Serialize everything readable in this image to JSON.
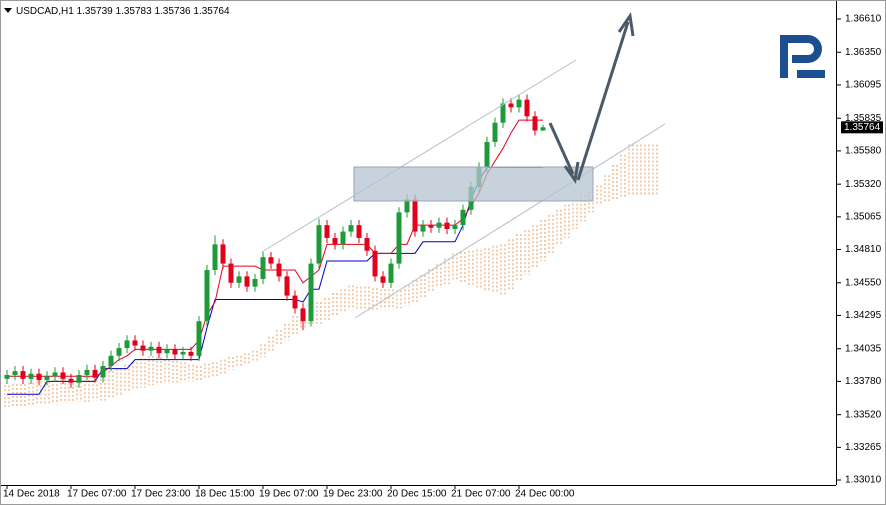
{
  "chart_data": {
    "type": "candlestick",
    "symbol": "USDCAD,H1",
    "categories": [
      "14 Dec 2018",
      null,
      null,
      null,
      null,
      null,
      null,
      null,
      "17 Dec 07:00",
      null,
      null,
      null,
      null,
      null,
      null,
      null,
      "17 Dec 23:00",
      null,
      null,
      null,
      null,
      null,
      null,
      null,
      "18 Dec 15:00",
      null,
      null,
      null,
      null,
      null,
      null,
      null,
      "19 Dec 07:00",
      null,
      null,
      null,
      null,
      null,
      null,
      null,
      "19 Dec 23:00",
      null,
      null,
      null,
      null,
      null,
      null,
      null,
      "20 Dec 15:00",
      null,
      null,
      null,
      null,
      null,
      null,
      null,
      "21 Dec 07:00",
      null,
      null,
      null,
      null,
      null,
      null,
      null,
      "24 Dec 00:00",
      null,
      null,
      null,
      null,
      null,
      null,
      null,
      null,
      null,
      null,
      null,
      null,
      null,
      null,
      null,
      null,
      null
    ],
    "open": [
      1.338,
      1.3383,
      1.3386,
      1.338,
      1.3384,
      1.3379,
      1.3382,
      1.3385,
      1.338,
      1.3377,
      1.3383,
      1.3387,
      1.3381,
      1.339,
      1.3398,
      1.3404,
      1.341,
      1.3406,
      1.3402,
      1.3405,
      1.34,
      1.3403,
      1.3399,
      1.3401,
      1.3398,
      1.3425,
      1.3465,
      1.3485,
      1.347,
      1.3455,
      1.346,
      1.3452,
      1.3458,
      1.3475,
      1.347,
      1.346,
      1.3445,
      1.3435,
      1.3425,
      1.347,
      1.35,
      1.349,
      1.3485,
      1.3495,
      1.35,
      1.349,
      1.348,
      1.346,
      1.3455,
      1.347,
      1.351,
      1.352,
      1.3495,
      1.35,
      1.3498,
      1.3502,
      1.3497,
      1.35,
      1.3512,
      1.353,
      1.3545,
      1.3565,
      1.358,
      1.3595,
      1.3592,
      1.3598,
      1.3585,
      1.35739,
      null,
      null,
      null,
      null,
      null,
      null,
      null,
      null,
      null,
      null,
      null,
      null,
      null,
      null
    ],
    "high": [
      1.3387,
      1.339,
      1.339,
      1.3388,
      1.3388,
      1.3386,
      1.3389,
      1.3389,
      1.3384,
      1.3387,
      1.3391,
      1.3391,
      1.3394,
      1.3402,
      1.3408,
      1.3414,
      1.3414,
      1.341,
      1.3409,
      1.3409,
      1.3407,
      1.3407,
      1.3405,
      1.3405,
      1.3429,
      1.3469,
      1.3492,
      1.3489,
      1.3474,
      1.3464,
      1.3464,
      1.3462,
      1.3479,
      1.3479,
      1.3474,
      1.3464,
      1.3449,
      1.3439,
      1.3474,
      1.3505,
      1.3504,
      1.3494,
      1.3499,
      1.3504,
      1.3504,
      1.3494,
      1.3484,
      1.3464,
      1.3474,
      1.3514,
      1.3524,
      1.3524,
      1.3504,
      1.3504,
      1.3506,
      1.3506,
      1.3504,
      1.3516,
      1.3534,
      1.3549,
      1.3569,
      1.3584,
      1.3599,
      1.3599,
      1.3602,
      1.3602,
      1.3589,
      1.35783,
      null,
      null,
      null,
      null,
      null,
      null,
      null,
      null,
      null,
      null,
      null,
      null,
      null,
      null
    ],
    "low": [
      1.3376,
      1.3379,
      1.3376,
      1.3376,
      1.3375,
      1.3375,
      1.3378,
      1.3376,
      1.3373,
      1.3373,
      1.3379,
      1.3377,
      1.3377,
      1.3386,
      1.3394,
      1.34,
      1.3402,
      1.3398,
      1.3398,
      1.3396,
      1.3396,
      1.3395,
      1.3395,
      1.3394,
      1.3394,
      1.3421,
      1.3461,
      1.3466,
      1.3451,
      1.3451,
      1.3448,
      1.3448,
      1.3454,
      1.3466,
      1.3456,
      1.3441,
      1.3431,
      1.3418,
      1.3421,
      1.3466,
      1.3486,
      1.3481,
      1.3481,
      1.3491,
      1.3486,
      1.3476,
      1.3456,
      1.3451,
      1.3451,
      1.3466,
      1.3506,
      1.3491,
      1.3491,
      1.3494,
      1.3494,
      1.3493,
      1.3493,
      1.3496,
      1.3508,
      1.3526,
      1.3541,
      1.3561,
      1.3576,
      1.3588,
      1.3588,
      1.3581,
      1.357,
      1.35736,
      null,
      null,
      null,
      null,
      null,
      null,
      null,
      null,
      null,
      null,
      null,
      null,
      null,
      null
    ],
    "close": [
      1.3383,
      1.3386,
      1.338,
      1.3384,
      1.3379,
      1.3382,
      1.3385,
      1.338,
      1.3377,
      1.3383,
      1.3387,
      1.3381,
      1.339,
      1.3398,
      1.3404,
      1.341,
      1.3406,
      1.3402,
      1.3405,
      1.34,
      1.3403,
      1.3399,
      1.3401,
      1.3398,
      1.3425,
      1.3465,
      1.3485,
      1.347,
      1.3455,
      1.346,
      1.3452,
      1.3458,
      1.3475,
      1.347,
      1.346,
      1.3445,
      1.3435,
      1.3425,
      1.347,
      1.35,
      1.349,
      1.3485,
      1.3495,
      1.35,
      1.349,
      1.348,
      1.346,
      1.3455,
      1.347,
      1.351,
      1.352,
      1.3495,
      1.35,
      1.3498,
      1.3502,
      1.3497,
      1.35,
      1.3512,
      1.353,
      1.3545,
      1.3565,
      1.358,
      1.3595,
      1.3592,
      1.3598,
      1.3585,
      1.35739,
      1.35764,
      null,
      null,
      null,
      null,
      null,
      null,
      null,
      null,
      null,
      null,
      null,
      null,
      null,
      null
    ],
    "kijun": [
      1.3368,
      1.3368,
      1.3368,
      1.3368,
      1.3368,
      1.3378,
      1.3378,
      1.3378,
      1.3378,
      1.3378,
      1.3378,
      1.3378,
      1.3388,
      1.3388,
      1.3388,
      1.3388,
      1.3395,
      1.3395,
      1.3395,
      1.3395,
      1.3395,
      1.3395,
      1.3395,
      1.3395,
      1.3395,
      1.342,
      1.3442,
      1.3442,
      1.3442,
      1.3442,
      1.3442,
      1.3442,
      1.3442,
      1.3442,
      1.3442,
      1.3442,
      1.3442,
      1.344,
      1.345,
      1.345,
      1.3472,
      1.3472,
      1.3472,
      1.3472,
      1.3472,
      1.3472,
      1.3478,
      1.3478,
      1.3478,
      1.3478,
      1.3478,
      1.3478,
      1.3487,
      1.3487,
      1.3487,
      1.3487,
      1.3487,
      1.35,
      1.352,
      1.3535,
      1.3545,
      1.3545,
      1.3545,
      1.3545,
      1.3545,
      1.3545,
      1.3545,
      1.3545,
      null,
      null,
      null,
      null,
      null,
      null,
      null,
      null,
      null,
      null,
      null,
      null,
      null,
      null
    ],
    "tenkan": [
      1.3382,
      1.3382,
      1.3382,
      1.3382,
      1.3382,
      1.3382,
      1.3382,
      1.3382,
      1.3382,
      1.3382,
      1.3382,
      1.3382,
      1.3385,
      1.339,
      1.3395,
      1.3398,
      1.3403,
      1.3403,
      1.3403,
      1.3403,
      1.3403,
      1.3403,
      1.3403,
      1.3403,
      1.341,
      1.343,
      1.344,
      1.3468,
      1.3468,
      1.3468,
      1.3468,
      1.3468,
      1.3465,
      1.3465,
      1.3465,
      1.3465,
      1.3465,
      1.3455,
      1.346,
      1.3465,
      1.3485,
      1.3485,
      1.3485,
      1.3485,
      1.3485,
      1.3485,
      1.3478,
      1.3478,
      1.3478,
      1.3485,
      1.3485,
      1.35,
      1.35,
      1.35,
      1.35,
      1.35,
      1.35,
      1.3505,
      1.3515,
      1.3525,
      1.354,
      1.355,
      1.356,
      1.3572,
      1.3582,
      1.3582,
      1.3582,
      1.3582,
      null,
      null,
      null,
      null,
      null,
      null,
      null,
      null,
      null,
      null,
      null,
      null,
      null,
      null
    ],
    "cloud_a": [
      1.3375,
      1.3376,
      1.3376,
      1.3377,
      1.3378,
      1.3378,
      1.3379,
      1.338,
      1.338,
      1.3381,
      1.3382,
      1.3382,
      1.3383,
      1.3386,
      1.3388,
      1.3391,
      1.3393,
      1.3396,
      1.3398,
      1.3397,
      1.3395,
      1.3394,
      1.3393,
      1.3391,
      1.339,
      1.3392,
      1.3393,
      1.3395,
      1.3397,
      1.3398,
      1.34,
      1.3402,
      1.3407,
      1.3413,
      1.3418,
      1.3423,
      1.3429,
      1.3434,
      1.3437,
      1.344,
      1.3443,
      1.3447,
      1.345,
      1.3453,
      1.3452,
      1.3452,
      1.3451,
      1.345,
      1.345,
      1.3449,
      1.3453,
      1.3457,
      1.3461,
      1.3466,
      1.347,
      1.3474,
      1.3478,
      1.3479,
      1.348,
      1.3481,
      1.3482,
      1.3484,
      1.3485,
      1.3489,
      1.3493,
      1.3496,
      1.35,
      1.3504,
      1.3508,
      1.3512,
      1.3516,
      1.352,
      1.3523,
      1.3527,
      1.3531,
      1.3539,
      1.3547,
      1.3555,
      1.3563,
      1.3563,
      1.3563,
      1.3563
    ],
    "cloud_b": [
      1.3358,
      1.3358,
      1.3359,
      1.3359,
      1.336,
      1.336,
      1.336,
      1.3361,
      1.3361,
      1.3362,
      1.3362,
      1.3363,
      1.3363,
      1.3365,
      1.3367,
      1.3369,
      1.3371,
      1.3373,
      1.3375,
      1.3376,
      1.3376,
      1.3377,
      1.3377,
      1.3378,
      1.3378,
      1.338,
      1.3382,
      1.3384,
      1.3387,
      1.3389,
      1.3391,
      1.3393,
      1.3397,
      1.3401,
      1.3406,
      1.341,
      1.3414,
      1.3418,
      1.3421,
      1.3423,
      1.3426,
      1.3429,
      1.3431,
      1.3434,
      1.3434,
      1.3434,
      1.3434,
      1.3434,
      1.3434,
      1.3434,
      1.3437,
      1.344,
      1.3443,
      1.3448,
      1.3451,
      1.3454,
      1.3457,
      1.3455,
      1.3453,
      1.3451,
      1.3449,
      1.3447,
      1.3445,
      1.345,
      1.3456,
      1.3461,
      1.3466,
      1.3472,
      1.3477,
      1.3484,
      1.349,
      1.3497,
      1.3503,
      1.351,
      1.3516,
      1.3518,
      1.352,
      1.3521,
      1.3523,
      1.3523,
      1.3523,
      1.3523
    ],
    "up_color": "#1e9a3a",
    "down_color": "#e3001b",
    "kijun_color": "#0000c8",
    "tenkan_color": "#e3001b",
    "cloud_color": "#eb9a55",
    "ylim": [
      1.32971,
      1.36727
    ],
    "yticks": [
      {
        "value": 1.3661,
        "label": "1.36610"
      },
      {
        "value": 1.3635,
        "label": "1.36350"
      },
      1.36095,
      1.35835,
      {
        "value": 1.3558,
        "label": "1.35580"
      },
      {
        "value": 1.3532,
        "label": "1.35320"
      },
      1.35065,
      {
        "value": 1.3481,
        "label": "1.34810"
      },
      {
        "value": 1.3455,
        "label": "1.34550"
      },
      1.34295,
      1.34035,
      {
        "value": 1.3378,
        "label": "1.33780"
      },
      {
        "value": 1.3352,
        "label": "1.33520"
      },
      1.33265,
      {
        "value": 1.3301,
        "label": "1.33010"
      }
    ]
  }
}
